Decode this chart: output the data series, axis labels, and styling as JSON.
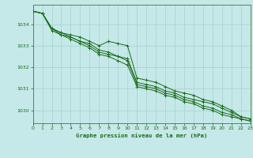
{
  "title": "Graphe pression niveau de la mer (hPa)",
  "xlim": [
    0,
    23
  ],
  "ylim": [
    1029.4,
    1034.9
  ],
  "yticks": [
    1030,
    1031,
    1032,
    1033,
    1034
  ],
  "xticks": [
    0,
    1,
    2,
    3,
    4,
    5,
    6,
    7,
    8,
    9,
    10,
    11,
    12,
    13,
    14,
    15,
    16,
    17,
    18,
    19,
    20,
    21,
    22,
    23
  ],
  "bg_color": "#c5e8e8",
  "line_color": "#1a6b1a",
  "grid_color": "#a8d0d0",
  "series": [
    [
      1034.6,
      1034.5,
      1033.8,
      1033.6,
      1033.5,
      1033.4,
      1033.2,
      1033.0,
      1033.2,
      1033.1,
      1033.0,
      1031.5,
      1031.4,
      1031.3,
      1031.1,
      1030.9,
      1030.8,
      1030.7,
      1030.5,
      1030.4,
      1030.2,
      1030.0,
      1029.7,
      1029.6
    ],
    [
      1034.6,
      1034.5,
      1033.8,
      1033.5,
      1033.4,
      1033.2,
      1033.0,
      1032.7,
      1032.6,
      1032.5,
      1032.4,
      1031.3,
      1031.2,
      1031.1,
      1030.9,
      1030.8,
      1030.6,
      1030.5,
      1030.4,
      1030.3,
      1030.1,
      1029.9,
      1029.7,
      1029.6
    ],
    [
      1034.6,
      1034.5,
      1033.8,
      1033.6,
      1033.4,
      1033.2,
      1033.1,
      1032.8,
      1032.7,
      1032.5,
      1032.3,
      1031.2,
      1031.1,
      1031.0,
      1030.8,
      1030.7,
      1030.5,
      1030.4,
      1030.2,
      1030.1,
      1029.9,
      1029.8,
      1029.6,
      1029.5
    ],
    [
      1034.6,
      1034.5,
      1033.7,
      1033.5,
      1033.3,
      1033.1,
      1032.9,
      1032.6,
      1032.5,
      1032.3,
      1032.1,
      1031.1,
      1031.0,
      1030.9,
      1030.7,
      1030.6,
      1030.4,
      1030.3,
      1030.1,
      1030.0,
      1029.8,
      1029.7,
      1029.6,
      1029.5
    ]
  ]
}
